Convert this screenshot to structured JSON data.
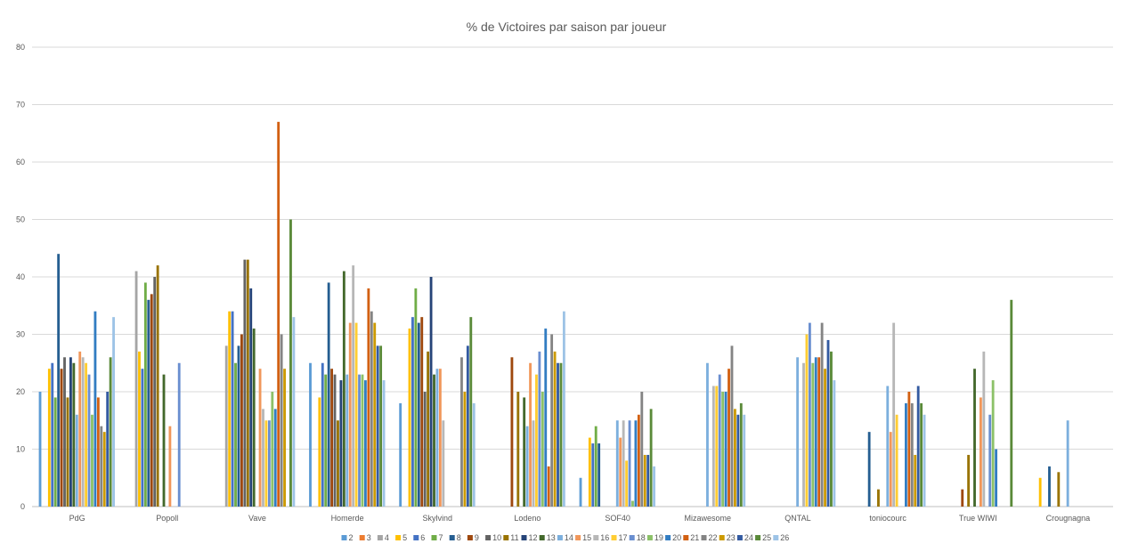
{
  "chart_data": {
    "type": "bar",
    "title": "% de Victoires par saison par joueur",
    "xlabel": "",
    "ylabel": "",
    "ylim": [
      0,
      80
    ],
    "yticks": [
      0,
      10,
      20,
      30,
      40,
      50,
      60,
      70,
      80
    ],
    "grid": true,
    "legend_position": "bottom",
    "categories": [
      "PdG",
      "Popoll",
      "Vave",
      "Homerde",
      "Skylvind",
      "Lodeno",
      "SOF40",
      "Mizawesome",
      "QNTAL",
      "toniocourc",
      "True WIWI",
      "Crougnagna"
    ],
    "series": [
      {
        "name": "2",
        "color": "#5B9BD5",
        "values": [
          20,
          0,
          0,
          25,
          18,
          0,
          5,
          0,
          0,
          0,
          0,
          0
        ]
      },
      {
        "name": "3",
        "color": "#ED7D31",
        "values": [
          0,
          0,
          0,
          0,
          0,
          0,
          0,
          0,
          0,
          0,
          0,
          0
        ]
      },
      {
        "name": "4",
        "color": "#A5A5A5",
        "values": [
          0,
          41,
          28,
          0,
          0,
          0,
          0,
          0,
          0,
          0,
          0,
          0
        ]
      },
      {
        "name": "5",
        "color": "#FFC000",
        "values": [
          24,
          27,
          34,
          19,
          31,
          0,
          12,
          0,
          0,
          0,
          0,
          5
        ]
      },
      {
        "name": "6",
        "color": "#4472C4",
        "values": [
          25,
          24,
          34,
          25,
          33,
          0,
          11,
          0,
          0,
          0,
          0,
          0
        ]
      },
      {
        "name": "7",
        "color": "#70AD47",
        "values": [
          19,
          39,
          25,
          23,
          38,
          0,
          14,
          0,
          0,
          0,
          0,
          0
        ]
      },
      {
        "name": "8",
        "color": "#255E91",
        "values": [
          44,
          36,
          28,
          39,
          32,
          0,
          11,
          0,
          0,
          13,
          0,
          7
        ]
      },
      {
        "name": "9",
        "color": "#9E480E",
        "values": [
          24,
          37,
          30,
          24,
          33,
          26,
          0,
          0,
          0,
          0,
          3,
          0
        ]
      },
      {
        "name": "10",
        "color": "#636363",
        "values": [
          26,
          40,
          43,
          23,
          20,
          0,
          0,
          0,
          0,
          0,
          0,
          0
        ]
      },
      {
        "name": "11",
        "color": "#997300",
        "values": [
          19,
          42,
          43,
          15,
          27,
          20,
          0,
          0,
          0,
          3,
          9,
          6
        ]
      },
      {
        "name": "12",
        "color": "#264478",
        "values": [
          26,
          0,
          38,
          22,
          40,
          0,
          0,
          0,
          0,
          0,
          0,
          0
        ]
      },
      {
        "name": "13",
        "color": "#43682B",
        "values": [
          25,
          23,
          31,
          41,
          23,
          19,
          0,
          0,
          0,
          0,
          24,
          0
        ]
      },
      {
        "name": "14",
        "color": "#7CAFDD",
        "values": [
          16,
          0,
          0,
          23,
          24,
          14,
          15,
          25,
          26,
          21,
          0,
          15
        ]
      },
      {
        "name": "15",
        "color": "#F1975A",
        "values": [
          27,
          14,
          24,
          32,
          24,
          25,
          12,
          0,
          0,
          13,
          19,
          0
        ]
      },
      {
        "name": "16",
        "color": "#B7B7B7",
        "values": [
          26,
          0,
          17,
          42,
          15,
          15,
          15,
          21,
          25,
          32,
          27,
          0
        ]
      },
      {
        "name": "17",
        "color": "#FFCD33",
        "values": [
          25,
          0,
          15,
          32,
          0,
          23,
          8,
          21,
          30,
          16,
          0,
          0
        ]
      },
      {
        "name": "18",
        "color": "#698ED0",
        "values": [
          23,
          25,
          15,
          23,
          0,
          27,
          15,
          23,
          32,
          0,
          16,
          0
        ]
      },
      {
        "name": "19",
        "color": "#8CC168",
        "values": [
          16,
          0,
          20,
          23,
          0,
          20,
          1,
          20,
          25,
          0,
          22,
          0
        ]
      },
      {
        "name": "20",
        "color": "#327DC2",
        "values": [
          34,
          0,
          17,
          22,
          0,
          31,
          15,
          20,
          26,
          18,
          10,
          0
        ]
      },
      {
        "name": "21",
        "color": "#D26012",
        "values": [
          19,
          0,
          67,
          38,
          0,
          7,
          16,
          24,
          26,
          20,
          0,
          0
        ]
      },
      {
        "name": "22",
        "color": "#848484",
        "values": [
          14,
          0,
          30,
          34,
          26,
          30,
          20,
          28,
          32,
          18,
          0,
          0
        ]
      },
      {
        "name": "23",
        "color": "#CC9A00",
        "values": [
          13,
          0,
          24,
          32,
          20,
          27,
          9,
          17,
          24,
          9,
          0,
          0
        ]
      },
      {
        "name": "24",
        "color": "#335AA1",
        "values": [
          20,
          0,
          0,
          28,
          28,
          25,
          9,
          16,
          29,
          21,
          0,
          0
        ]
      },
      {
        "name": "25",
        "color": "#5A8A39",
        "values": [
          26,
          0,
          50,
          28,
          33,
          25,
          17,
          18,
          27,
          18,
          36,
          0
        ]
      },
      {
        "name": "26",
        "color": "#9DC3E6",
        "values": [
          33,
          0,
          33,
          22,
          18,
          34,
          7,
          16,
          22,
          16,
          0,
          0
        ]
      }
    ]
  }
}
